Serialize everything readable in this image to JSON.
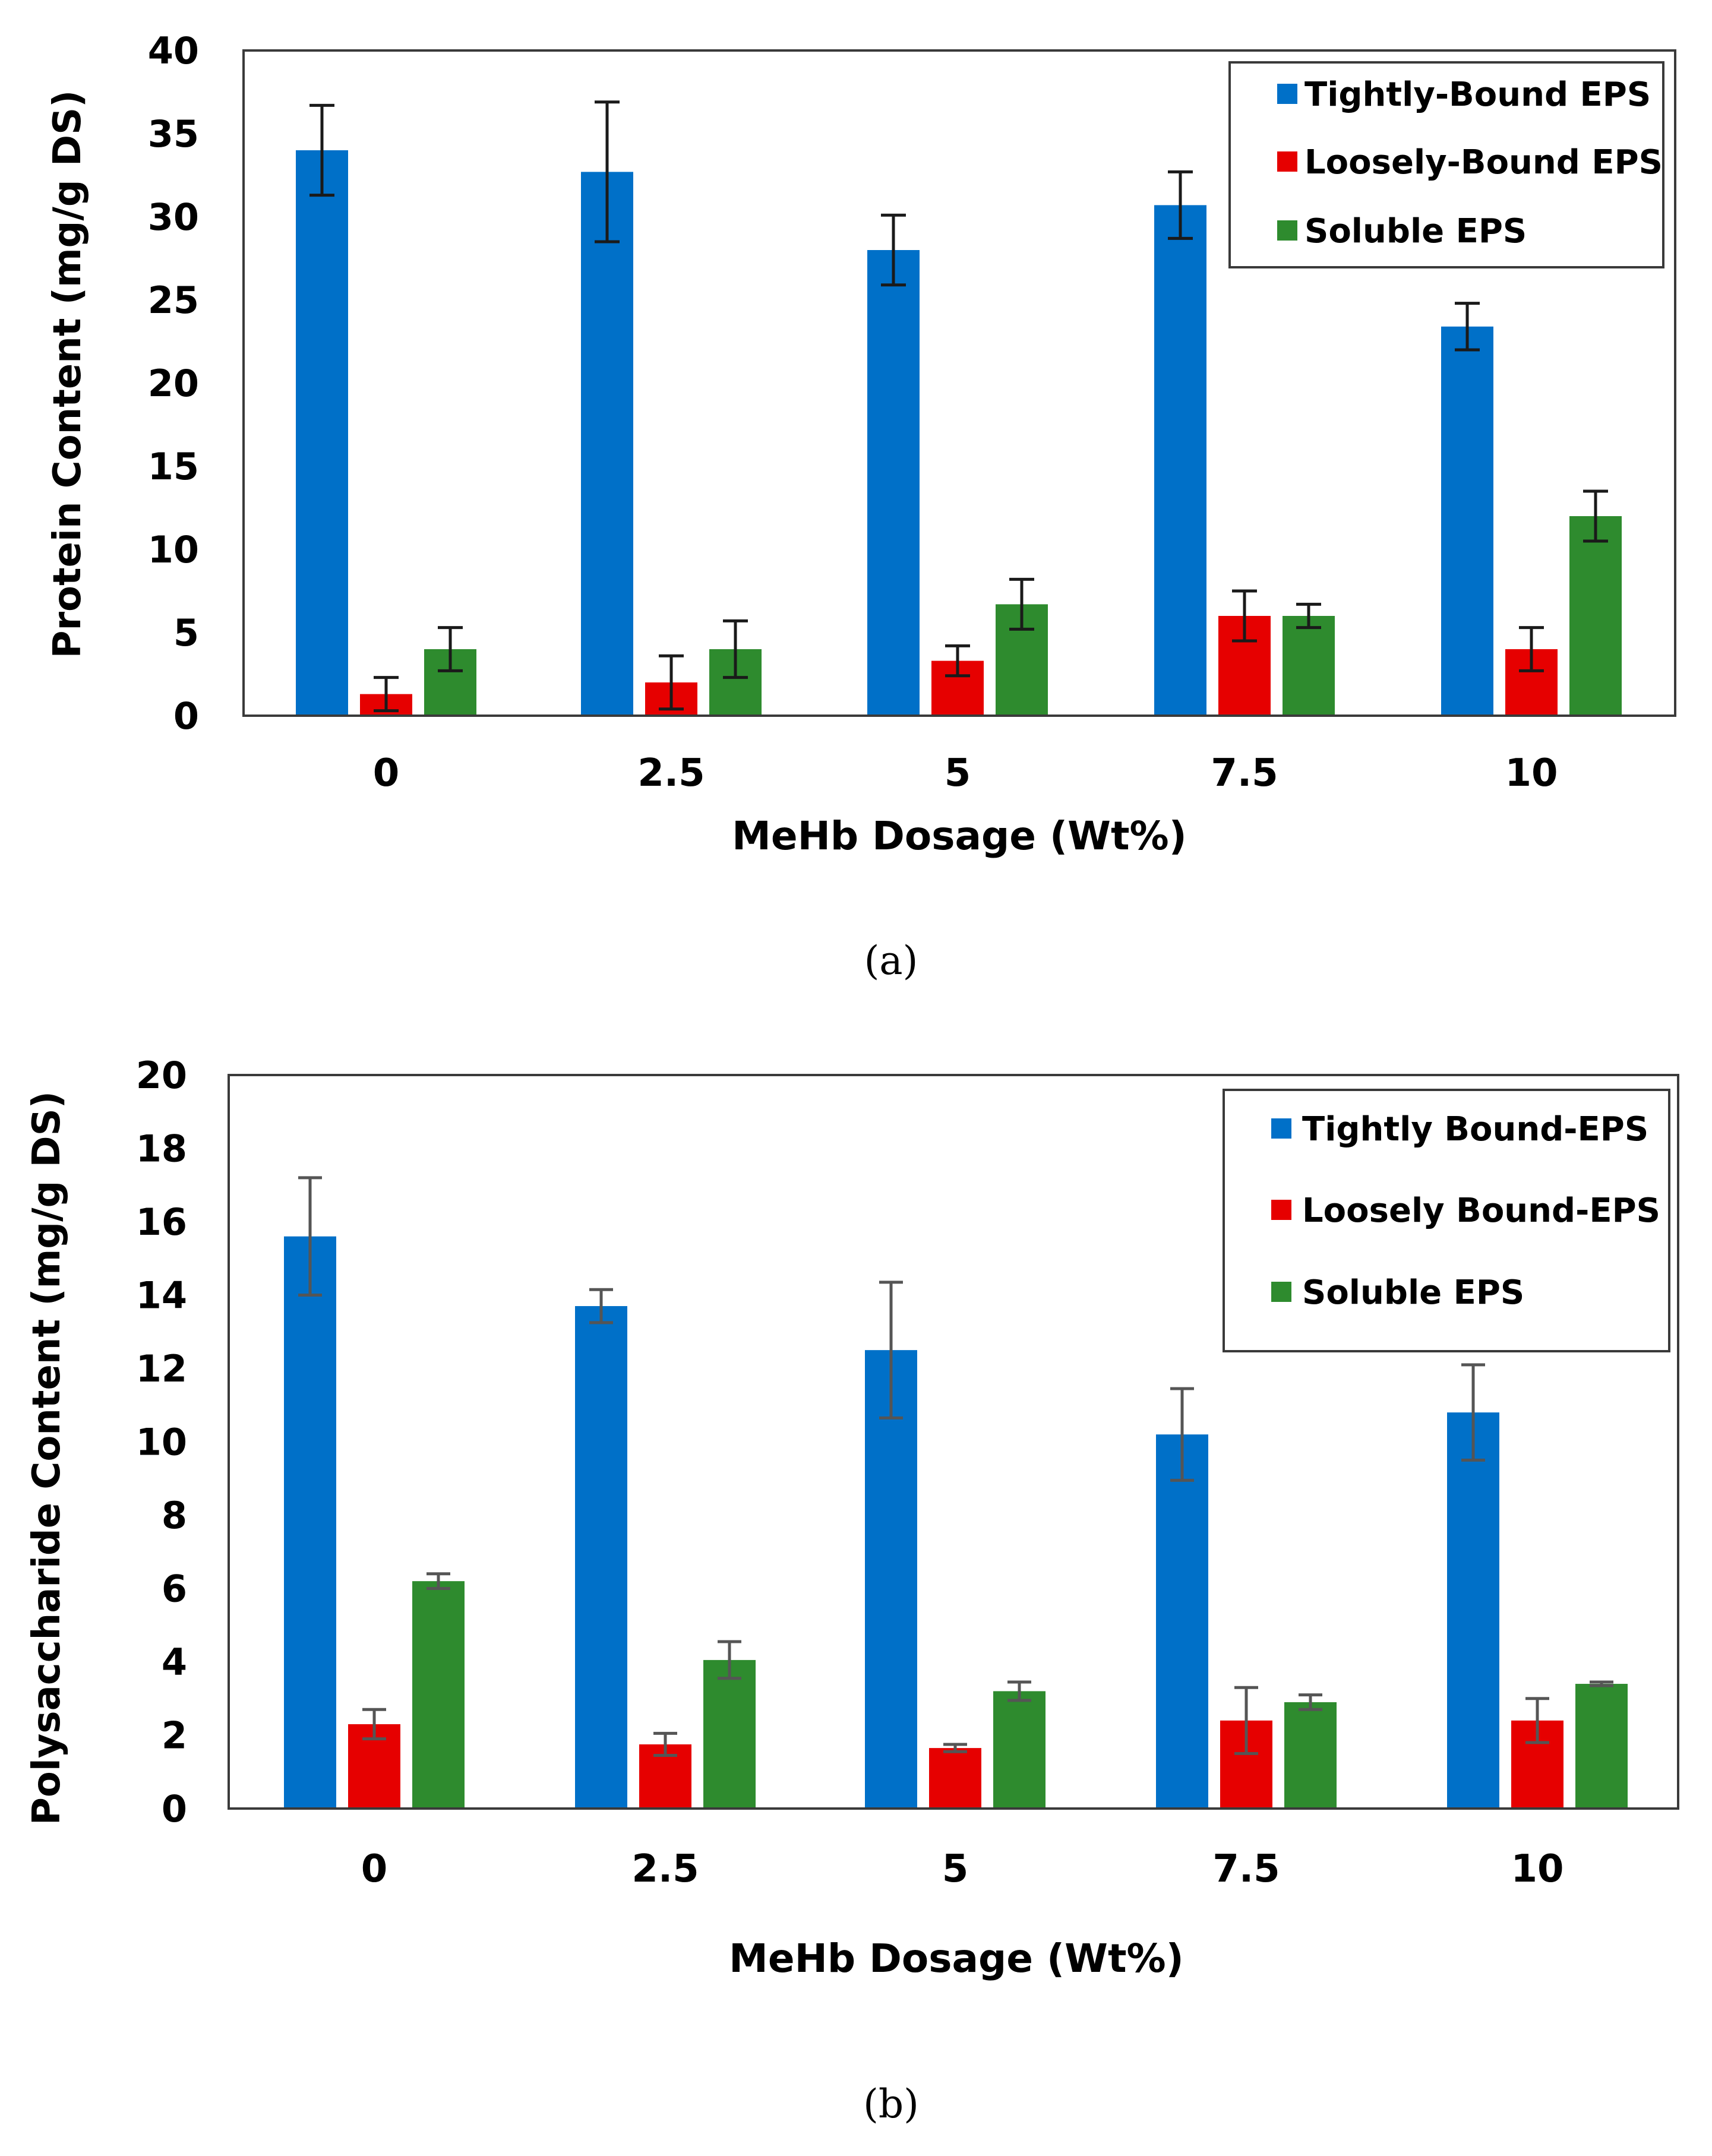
{
  "colors": {
    "tightly": "#0070C8",
    "loosely": "#E60000",
    "soluble": "#2E8B2E",
    "axis": "#3a3a3a",
    "text": "#000000"
  },
  "chart_data": [
    {
      "type": "bar",
      "caption": "(a)",
      "title": "",
      "xlabel": "MeHb Dosage (Wt%)",
      "ylabel": "Protein Content (mg/g DS)",
      "ylim": [
        0,
        40
      ],
      "yticks": [
        "0",
        "5",
        "10",
        "15",
        "20",
        "25",
        "30",
        "35",
        "40"
      ],
      "categories": [
        "0",
        "2.5",
        "5",
        "7.5",
        "10"
      ],
      "legend_position": "top-right",
      "series": [
        {
          "name": "Tightly-Bound EPS",
          "color_key": "tightly",
          "values": [
            34.0,
            32.7,
            28.0,
            30.7,
            23.4
          ],
          "errors": [
            2.7,
            4.2,
            2.1,
            2.0,
            1.4
          ]
        },
        {
          "name": "Loosely-Bound EPS",
          "color_key": "loosely",
          "values": [
            1.3,
            2.0,
            3.3,
            6.0,
            4.0
          ],
          "errors": [
            1.0,
            1.6,
            0.9,
            1.5,
            1.3
          ]
        },
        {
          "name": "Soluble EPS",
          "color_key": "soluble",
          "values": [
            4.0,
            4.0,
            6.7,
            6.0,
            12.0
          ],
          "errors": [
            1.3,
            1.7,
            1.5,
            0.7,
            1.5
          ]
        }
      ]
    },
    {
      "type": "bar",
      "caption": "(b)",
      "title": "",
      "xlabel": "MeHb Dosage (Wt%)",
      "ylabel": "Polysaccharide Content (mg/g DS)",
      "ylim": [
        0,
        20
      ],
      "yticks": [
        "0",
        "2",
        "4",
        "6",
        "8",
        "10",
        "12",
        "14",
        "16",
        "18",
        "20"
      ],
      "categories": [
        "0",
        "2.5",
        "5",
        "7.5",
        "10"
      ],
      "legend_position": "top-right",
      "series": [
        {
          "name": "Tightly Bound-EPS",
          "color_key": "tightly",
          "values": [
            15.6,
            13.7,
            12.5,
            10.2,
            10.8
          ],
          "errors": [
            1.6,
            0.45,
            1.85,
            1.25,
            1.3
          ]
        },
        {
          "name": "Loosely Bound-EPS",
          "color_key": "loosely",
          "values": [
            2.3,
            1.75,
            1.65,
            2.4,
            2.4
          ],
          "errors": [
            0.4,
            0.3,
            0.1,
            0.9,
            0.6
          ]
        },
        {
          "name": "Soluble EPS",
          "color_key": "soluble",
          "values": [
            6.2,
            4.05,
            3.2,
            2.9,
            3.4
          ],
          "errors": [
            0.2,
            0.5,
            0.25,
            0.2,
            0.05
          ]
        }
      ]
    }
  ]
}
